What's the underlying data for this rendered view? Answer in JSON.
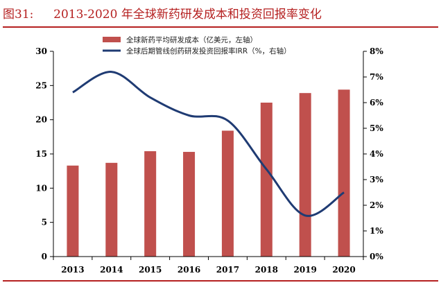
{
  "figure": {
    "label": "图31:",
    "title": "2013-2020 年全球新药研发成本和投资回报率变化"
  },
  "colors": {
    "bar": "#c0504d",
    "line": "#1f3b73",
    "accent": "#b52020"
  },
  "chart_data": {
    "type": "bar",
    "categories": [
      "2013",
      "2014",
      "2015",
      "2016",
      "2017",
      "2018",
      "2019",
      "2020"
    ],
    "series": [
      {
        "name": "全球新药平均研发成本（亿美元，左轴）",
        "type": "bar",
        "axis": "left",
        "values": [
          13.3,
          13.7,
          15.4,
          15.3,
          18.4,
          22.5,
          23.9,
          24.4
        ]
      },
      {
        "name": "全球后期管线创药研发投资回报率IRR（%，右轴）",
        "type": "line",
        "axis": "right",
        "values": [
          6.4,
          7.2,
          6.2,
          5.5,
          5.3,
          3.4,
          1.6,
          2.5
        ]
      }
    ],
    "y_left": {
      "min": 0,
      "max": 30,
      "step": 5,
      "ticks": [
        "0",
        "5",
        "10",
        "15",
        "20",
        "25",
        "30"
      ]
    },
    "y_right": {
      "min": 0,
      "max": 8,
      "step": 1,
      "ticks": [
        "0%",
        "1%",
        "2%",
        "3%",
        "4%",
        "5%",
        "6%",
        "7%",
        "8%"
      ]
    },
    "legend_position": "top-center",
    "grid": false
  }
}
